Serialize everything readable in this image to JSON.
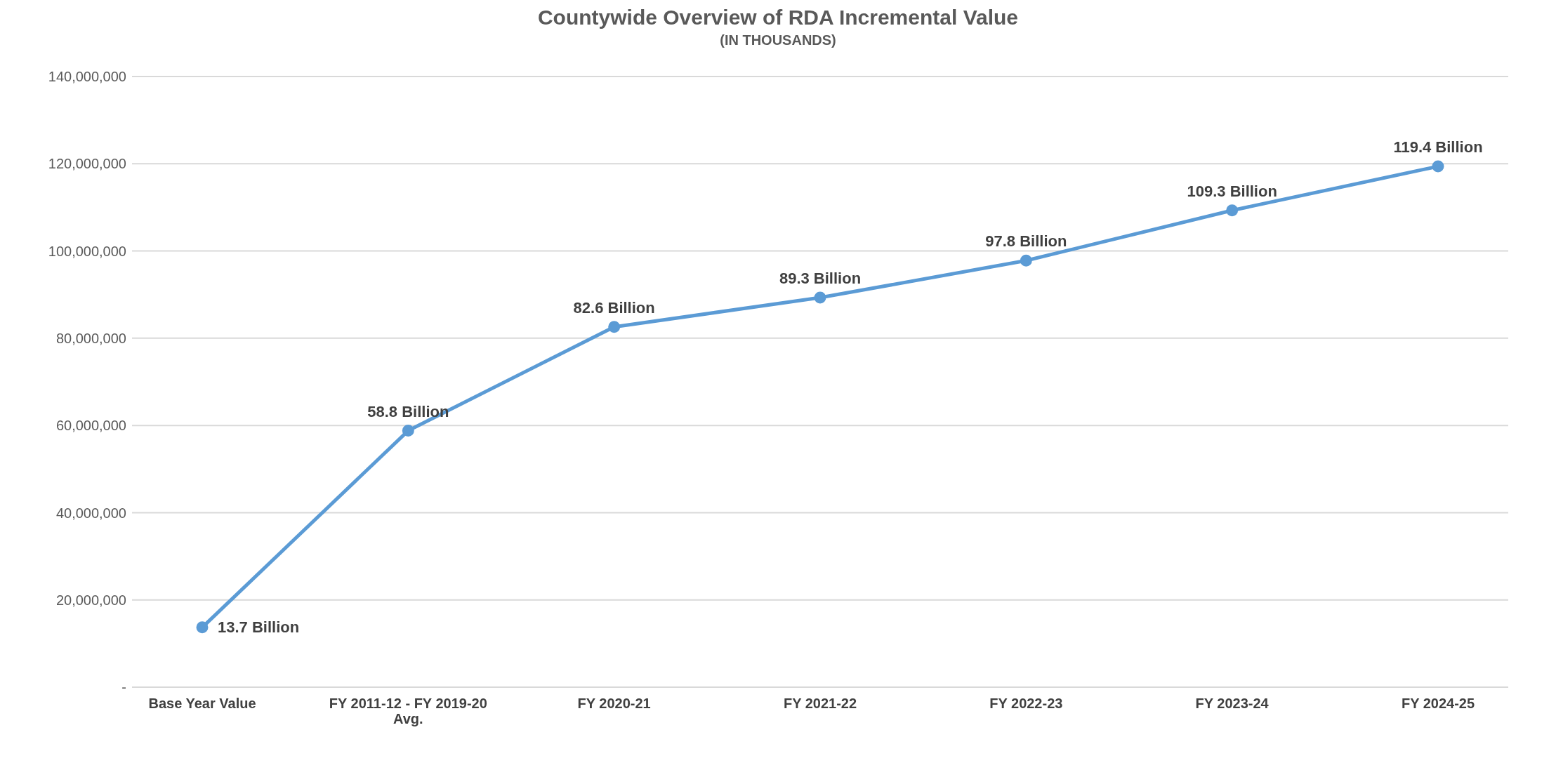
{
  "chart_data": {
    "type": "line",
    "title": "Countywide Overview of RDA Incremental Value",
    "subtitle": "(IN THOUSANDS)",
    "categories": [
      "Base Year Value",
      "FY 2011-12 - FY 2019-20 Avg.",
      "FY 2020-21",
      "FY 2021-22",
      "FY 2022-23",
      "FY 2023-24",
      "FY 2024-25"
    ],
    "series": [
      {
        "color": "#5b9bd5",
        "values": [
          13700000,
          58800000,
          82600000,
          89300000,
          97800000,
          109300000,
          119400000
        ]
      }
    ],
    "annotations": [
      {
        "text": "13.7 Billion",
        "x": "Base Year Value",
        "y": 13700000
      },
      {
        "text": "58.8 Billion",
        "x": "FY 2011-12 - FY 2019-20 Avg.",
        "y": 58800000
      },
      {
        "text": "82.6 Billion",
        "x": "FY 2020-21",
        "y": 82600000
      },
      {
        "text": "89.3 Billion",
        "x": "FY 2021-22",
        "y": 89300000
      },
      {
        "text": "97.8 Billion",
        "x": "FY 2022-23",
        "y": 97800000
      },
      {
        "text": "109.3 Billion",
        "x": "FY 2023-24",
        "y": 109300000
      },
      {
        "text": "119.4 Billion",
        "x": "FY 2024-25",
        "y": 119400000
      }
    ],
    "ylim": [
      0,
      140000000
    ],
    "yticks": [
      {
        "value": 0,
        "label": "-"
      },
      {
        "value": 20000000,
        "label": "20,000,000"
      },
      {
        "value": 40000000,
        "label": "40,000,000"
      },
      {
        "value": 60000000,
        "label": "60,000,000"
      },
      {
        "value": 80000000,
        "label": "80,000,000"
      },
      {
        "value": 100000000,
        "label": "100,000,000"
      },
      {
        "value": 120000000,
        "label": "120,000,000"
      },
      {
        "value": 140000000,
        "label": "140,000,000"
      }
    ],
    "grid": "y",
    "legend": false,
    "marker": "circle",
    "line_style": "solid"
  }
}
